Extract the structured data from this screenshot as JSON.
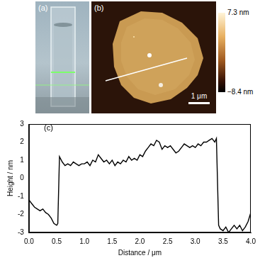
{
  "panels": [
    {
      "label": "(a)"
    },
    {
      "label": "(b)",
      "scale_bar": "1 μm",
      "colorbar": {
        "range": [
          -8.4,
          7.3
        ],
        "ticks": [
          {
            "value": 7.3,
            "label": "7.3 nm"
          },
          {
            "value": -8.4,
            "label": "−8.4 nm"
          }
        ]
      }
    }
  ],
  "chart_data": {
    "type": "line",
    "annotations": [
      "(c)"
    ],
    "x_label": "Distance / μm",
    "y_label": "Height / nm",
    "x": [
      0.0,
      0.05,
      0.1,
      0.15,
      0.2,
      0.25,
      0.3,
      0.35,
      0.4,
      0.45,
      0.5,
      0.52,
      0.55,
      0.6,
      0.65,
      0.7,
      0.75,
      0.8,
      0.85,
      0.9,
      0.95,
      1.0,
      1.05,
      1.1,
      1.15,
      1.2,
      1.25,
      1.3,
      1.35,
      1.4,
      1.45,
      1.5,
      1.55,
      1.6,
      1.65,
      1.7,
      1.75,
      1.8,
      1.85,
      1.9,
      1.95,
      2.0,
      2.05,
      2.1,
      2.15,
      2.2,
      2.25,
      2.3,
      2.35,
      2.4,
      2.45,
      2.5,
      2.55,
      2.6,
      2.65,
      2.7,
      2.75,
      2.8,
      2.85,
      2.9,
      2.95,
      3.0,
      3.05,
      3.1,
      3.15,
      3.2,
      3.25,
      3.3,
      3.35,
      3.38,
      3.42,
      3.45,
      3.5,
      3.55,
      3.6,
      3.65,
      3.7,
      3.75,
      3.8,
      3.85,
      3.9,
      3.95,
      4.0
    ],
    "values": [
      -1.2,
      -1.4,
      -1.6,
      -1.7,
      -1.8,
      -1.7,
      -1.9,
      -2.0,
      -2.2,
      -2.5,
      -2.6,
      -2.5,
      1.2,
      0.9,
      0.7,
      0.8,
      0.7,
      0.9,
      0.8,
      0.7,
      0.8,
      0.8,
      0.9,
      0.7,
      1.0,
      0.9,
      1.3,
      1.1,
      0.9,
      1.0,
      0.8,
      1.0,
      0.7,
      0.9,
      0.8,
      1.0,
      0.9,
      1.2,
      1.0,
      1.1,
      1.0,
      1.3,
      1.2,
      1.5,
      1.7,
      1.9,
      1.8,
      2.1,
      2.0,
      1.6,
      1.8,
      1.7,
      1.8,
      1.6,
      1.4,
      1.5,
      1.7,
      1.9,
      1.8,
      1.7,
      1.8,
      1.7,
      1.9,
      1.8,
      2.0,
      2.0,
      2.1,
      2.2,
      2.0,
      2.2,
      -2.6,
      -2.8,
      -2.9,
      -2.7,
      -3.0,
      -2.8,
      -2.6,
      -2.8,
      -2.6,
      -2.9,
      -2.7,
      -2.4,
      -1.9
    ],
    "color": "#000000",
    "xlim": [
      0,
      4
    ],
    "xticks": [
      {
        "value": 0,
        "label": "0.0"
      },
      0.5,
      {
        "value": 1,
        "label": "1.0"
      },
      1.5,
      {
        "value": 2,
        "label": "2.0"
      },
      2.5,
      {
        "value": 3,
        "label": "3.0"
      },
      3.5,
      {
        "value": 4,
        "label": "4.0"
      }
    ],
    "ylim": [
      -3,
      3
    ],
    "yticks": [
      -3,
      -2,
      -1,
      0,
      1,
      2,
      3
    ],
    "grid": false
  }
}
